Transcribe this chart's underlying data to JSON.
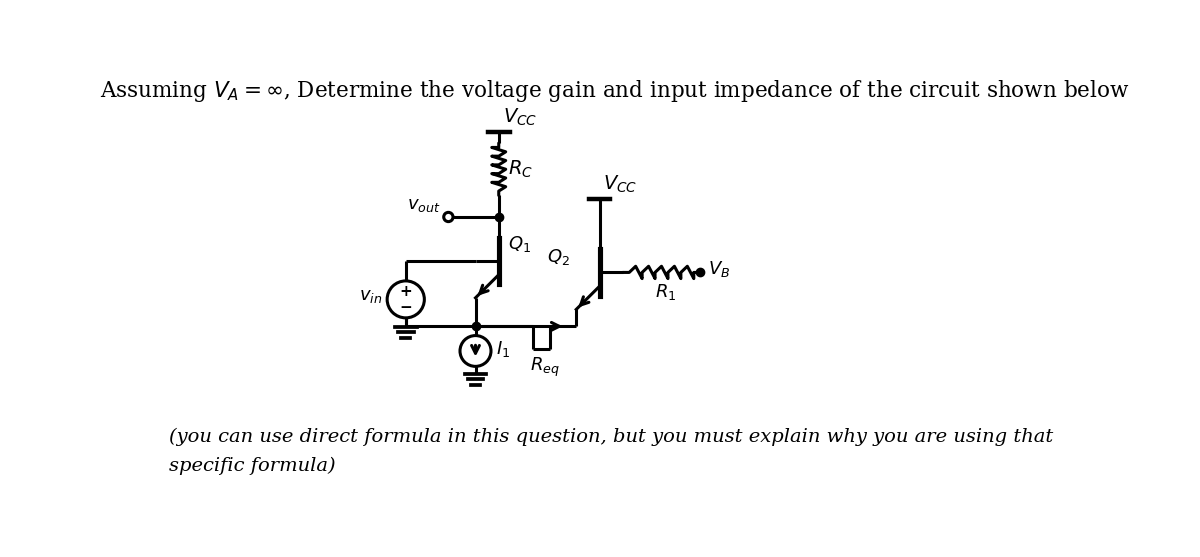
{
  "title": "Assuming $V_A = \\infty$, Determine the voltage gain and input impedance of the circuit shown below",
  "footer_line1": "(you can use direct formula in this question, but you must explain why you are using that",
  "footer_line2": "specific formula)",
  "background_color": "#ffffff",
  "line_color": "#000000",
  "title_fontsize": 15.5,
  "footer_fontsize": 14,
  "labels": {
    "Vcc1": "$V_{CC}$",
    "Rc": "$R_C$",
    "Vout": "$v_{out}$",
    "Vcc2": "$V_{CC}$",
    "Q1": "$Q_1$",
    "Q2": "$Q_2$",
    "VB": "$V_B$",
    "R1": "$R_1$",
    "Vin": "$v_{in}$",
    "I1": "$I_1$",
    "Req": "$R_{eq}$"
  }
}
